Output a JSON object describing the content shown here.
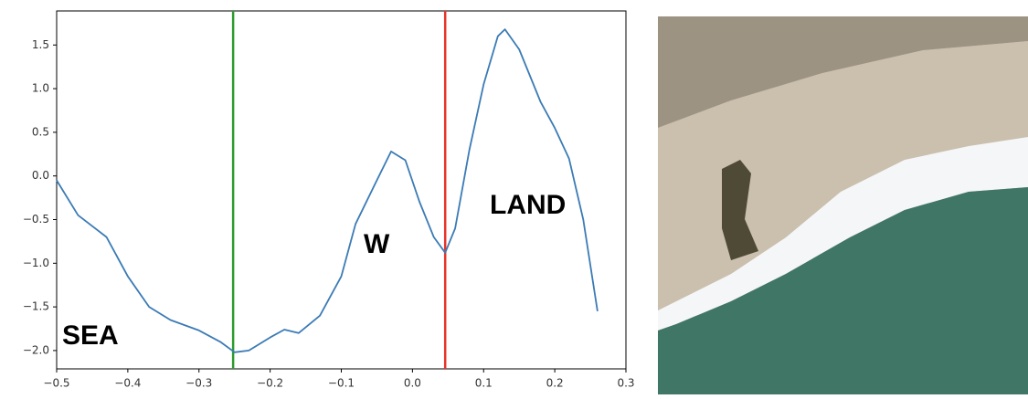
{
  "chart_data": {
    "type": "line",
    "x": [
      -0.5,
      -0.47,
      -0.43,
      -0.4,
      -0.37,
      -0.34,
      -0.3,
      -0.27,
      -0.25,
      -0.23,
      -0.2,
      -0.18,
      -0.16,
      -0.13,
      -0.1,
      -0.08,
      -0.05,
      -0.03,
      -0.01,
      0.01,
      0.03,
      0.046,
      0.06,
      0.08,
      0.1,
      0.12,
      0.13,
      0.15,
      0.18,
      0.2,
      0.22,
      0.24,
      0.26
    ],
    "series": [
      {
        "color": "#3b7bb5",
        "values": [
          -0.05,
          -0.45,
          -0.7,
          -1.15,
          -1.5,
          -1.65,
          -1.77,
          -1.9,
          -2.02,
          -2.0,
          -1.85,
          -1.76,
          -1.8,
          -1.6,
          -1.15,
          -0.55,
          -0.05,
          0.28,
          0.18,
          -0.3,
          -0.7,
          -0.88,
          -0.6,
          0.3,
          1.05,
          1.6,
          1.68,
          1.45,
          0.85,
          0.55,
          0.2,
          -0.5,
          -1.55
        ]
      }
    ],
    "vlines": [
      {
        "x": -0.252,
        "color": "#2e9a2e"
      },
      {
        "x": 0.046,
        "color": "#e8332a"
      }
    ],
    "annotations": [
      "SEA",
      "W",
      "LAND"
    ],
    "xlim": [
      -0.5,
      0.3
    ],
    "ylim": [
      -2.21,
      1.89
    ],
    "xticks": [
      {
        "value": -0.5,
        "label": "−0.5"
      },
      {
        "value": -0.4,
        "label": "−0.4"
      },
      {
        "value": -0.3,
        "label": "−0.3"
      },
      {
        "value": -0.2,
        "label": "−0.2"
      },
      {
        "value": -0.1,
        "label": "−0.1"
      },
      {
        "value": 0,
        "label": "0.0"
      },
      {
        "value": 0.1,
        "label": "0.1"
      },
      {
        "value": 0.2,
        "label": "0.2"
      },
      {
        "value": 0.3,
        "label": "0.3"
      }
    ],
    "yticks": [
      {
        "value": -2,
        "label": "−2.0"
      },
      {
        "value": -1.5,
        "label": "−1.5"
      },
      {
        "value": -1,
        "label": "−1.0"
      },
      {
        "value": -0.5,
        "label": "−0.5"
      },
      {
        "value": 0,
        "label": "0.0"
      },
      {
        "value": 0.5,
        "label": "0.5"
      },
      {
        "value": 1,
        "label": "1.0"
      },
      {
        "value": 1.5,
        "label": "1.5"
      }
    ]
  }
}
